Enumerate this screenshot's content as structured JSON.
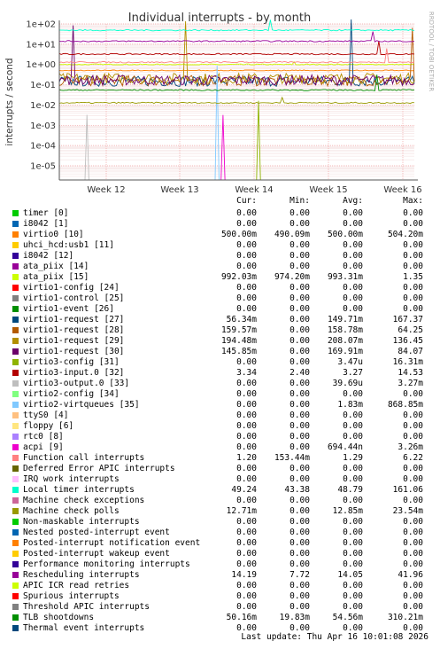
{
  "chart_data": {
    "type": "line",
    "title": "Individual interrupts - by month",
    "ylabel": "interrupts / second",
    "y_scale": "log",
    "ylim": [
      2e-06,
      100
    ],
    "y_ticks": [
      "1e+02",
      "1e+01",
      "1e+00",
      "1e-01",
      "1e-02",
      "1e-03",
      "1e-04",
      "1e-05"
    ],
    "x_ticks": [
      "Week 12",
      "Week 13",
      "Week 14",
      "Week 15",
      "Week 16"
    ],
    "watermark": "RRDTOOL / TOBI OETIKER",
    "grid": true,
    "columns": [
      "Cur:",
      "Min:",
      "Avg:",
      "Max:"
    ],
    "series": [
      {
        "name": "timer [0]",
        "color": "#00cc00",
        "cur": "0.00",
        "min": "0.00",
        "avg": "0.00",
        "max": "0.00"
      },
      {
        "name": "i8042 [1]",
        "color": "#0066b3",
        "cur": "0.00",
        "min": "0.00",
        "avg": "0.00",
        "max": "0.00"
      },
      {
        "name": "virtio0 [10]",
        "color": "#ff8000",
        "cur": "500.00m",
        "min": "490.09m",
        "avg": "500.00m",
        "max": "504.20m"
      },
      {
        "name": "uhci_hcd:usb1 [11]",
        "color": "#ffcc00",
        "cur": "0.00",
        "min": "0.00",
        "avg": "0.00",
        "max": "0.00"
      },
      {
        "name": "i8042 [12]",
        "color": "#330099",
        "cur": "0.00",
        "min": "0.00",
        "avg": "0.00",
        "max": "0.00"
      },
      {
        "name": "ata_piix [14]",
        "color": "#990099",
        "cur": "0.00",
        "min": "0.00",
        "avg": "0.00",
        "max": "0.00"
      },
      {
        "name": "ata_piix [15]",
        "color": "#ccff00",
        "cur": "992.03m",
        "min": "974.20m",
        "avg": "993.31m",
        "max": "1.35"
      },
      {
        "name": "virtio1-config [24]",
        "color": "#ff0000",
        "cur": "0.00",
        "min": "0.00",
        "avg": "0.00",
        "max": "0.00"
      },
      {
        "name": "virtio1-control [25]",
        "color": "#808080",
        "cur": "0.00",
        "min": "0.00",
        "avg": "0.00",
        "max": "0.00"
      },
      {
        "name": "virtio1-event [26]",
        "color": "#008f00",
        "cur": "0.00",
        "min": "0.00",
        "avg": "0.00",
        "max": "0.00"
      },
      {
        "name": "virtio1-request [27]",
        "color": "#00487d",
        "cur": "56.34m",
        "min": "0.00",
        "avg": "149.71m",
        "max": "167.37"
      },
      {
        "name": "virtio1-request [28]",
        "color": "#b35a00",
        "cur": "159.57m",
        "min": "0.00",
        "avg": "158.78m",
        "max": "64.25"
      },
      {
        "name": "virtio1-request [29]",
        "color": "#b38f00",
        "cur": "194.48m",
        "min": "0.00",
        "avg": "208.07m",
        "max": "136.45"
      },
      {
        "name": "virtio1-request [30]",
        "color": "#6b006b",
        "cur": "145.85m",
        "min": "0.00",
        "avg": "169.91m",
        "max": "84.07"
      },
      {
        "name": "virtio3-config [31]",
        "color": "#8fb300",
        "cur": "0.00",
        "min": "0.00",
        "avg": "3.47u",
        "max": "16.31m"
      },
      {
        "name": "virtio3-input.0 [32]",
        "color": "#b30000",
        "cur": "3.34",
        "min": "2.40",
        "avg": "3.27",
        "max": "14.53"
      },
      {
        "name": "virtio3-output.0 [33]",
        "color": "#bebebe",
        "cur": "0.00",
        "min": "0.00",
        "avg": "39.69u",
        "max": "3.27m"
      },
      {
        "name": "virtio2-config [34]",
        "color": "#80ff80",
        "cur": "0.00",
        "min": "0.00",
        "avg": "0.00",
        "max": "0.00"
      },
      {
        "name": "virtio2-virtqueues [35]",
        "color": "#80c9ff",
        "cur": "0.00",
        "min": "0.00",
        "avg": "1.83m",
        "max": "868.85m"
      },
      {
        "name": "ttyS0 [4]",
        "color": "#ffc080",
        "cur": "0.00",
        "min": "0.00",
        "avg": "0.00",
        "max": "0.00"
      },
      {
        "name": "floppy [6]",
        "color": "#ffe680",
        "cur": "0.00",
        "min": "0.00",
        "avg": "0.00",
        "max": "0.00"
      },
      {
        "name": "rtc0 [8]",
        "color": "#aa80ff",
        "cur": "0.00",
        "min": "0.00",
        "avg": "0.00",
        "max": "0.00"
      },
      {
        "name": "acpi [9]",
        "color": "#ee00cc",
        "cur": "0.00",
        "min": "0.00",
        "avg": "694.44n",
        "max": "3.26m"
      },
      {
        "name": "Function call interrupts",
        "color": "#ff8080",
        "cur": "1.20",
        "min": "153.44m",
        "avg": "1.29",
        "max": "6.22"
      },
      {
        "name": "Deferred Error APIC interrupts",
        "color": "#666600",
        "cur": "0.00",
        "min": "0.00",
        "avg": "0.00",
        "max": "0.00"
      },
      {
        "name": "IRQ work interrupts",
        "color": "#ffbfff",
        "cur": "0.00",
        "min": "0.00",
        "avg": "0.00",
        "max": "0.00"
      },
      {
        "name": "Local timer interrupts",
        "color": "#00ffcc",
        "cur": "49.24",
        "min": "43.38",
        "avg": "48.79",
        "max": "161.06"
      },
      {
        "name": "Machine check exceptions",
        "color": "#cc6699",
        "cur": "0.00",
        "min": "0.00",
        "avg": "0.00",
        "max": "0.00"
      },
      {
        "name": "Machine check polls",
        "color": "#999900",
        "cur": "12.71m",
        "min": "0.00",
        "avg": "12.85m",
        "max": "23.54m"
      },
      {
        "name": "Non-maskable interrupts",
        "color": "#00cc00",
        "cur": "0.00",
        "min": "0.00",
        "avg": "0.00",
        "max": "0.00"
      },
      {
        "name": "Nested posted-interrupt event",
        "color": "#0066b3",
        "cur": "0.00",
        "min": "0.00",
        "avg": "0.00",
        "max": "0.00"
      },
      {
        "name": "Posted-interrupt notification event",
        "color": "#ff8000",
        "cur": "0.00",
        "min": "0.00",
        "avg": "0.00",
        "max": "0.00"
      },
      {
        "name": "Posted-interrupt wakeup event",
        "color": "#ffcc00",
        "cur": "0.00",
        "min": "0.00",
        "avg": "0.00",
        "max": "0.00"
      },
      {
        "name": "Performance monitoring interrupts",
        "color": "#330099",
        "cur": "0.00",
        "min": "0.00",
        "avg": "0.00",
        "max": "0.00"
      },
      {
        "name": "Rescheduling interrupts",
        "color": "#990099",
        "cur": "14.19",
        "min": "7.72",
        "avg": "14.05",
        "max": "41.96"
      },
      {
        "name": "APIC ICR read retries",
        "color": "#ccff00",
        "cur": "0.00",
        "min": "0.00",
        "avg": "0.00",
        "max": "0.00"
      },
      {
        "name": "Spurious interrupts",
        "color": "#ff0000",
        "cur": "0.00",
        "min": "0.00",
        "avg": "0.00",
        "max": "0.00"
      },
      {
        "name": "Threshold APIC interrupts",
        "color": "#808080",
        "cur": "0.00",
        "min": "0.00",
        "avg": "0.00",
        "max": "0.00"
      },
      {
        "name": "TLB shootdowns",
        "color": "#008f00",
        "cur": "50.16m",
        "min": "19.83m",
        "avg": "54.56m",
        "max": "310.21m"
      },
      {
        "name": "Thermal event interrupts",
        "color": "#00487d",
        "cur": "0.00",
        "min": "0.00",
        "avg": "0.00",
        "max": "0.00"
      }
    ],
    "last_update": "Last update: Thu Apr 16 10:01:08 2026"
  }
}
